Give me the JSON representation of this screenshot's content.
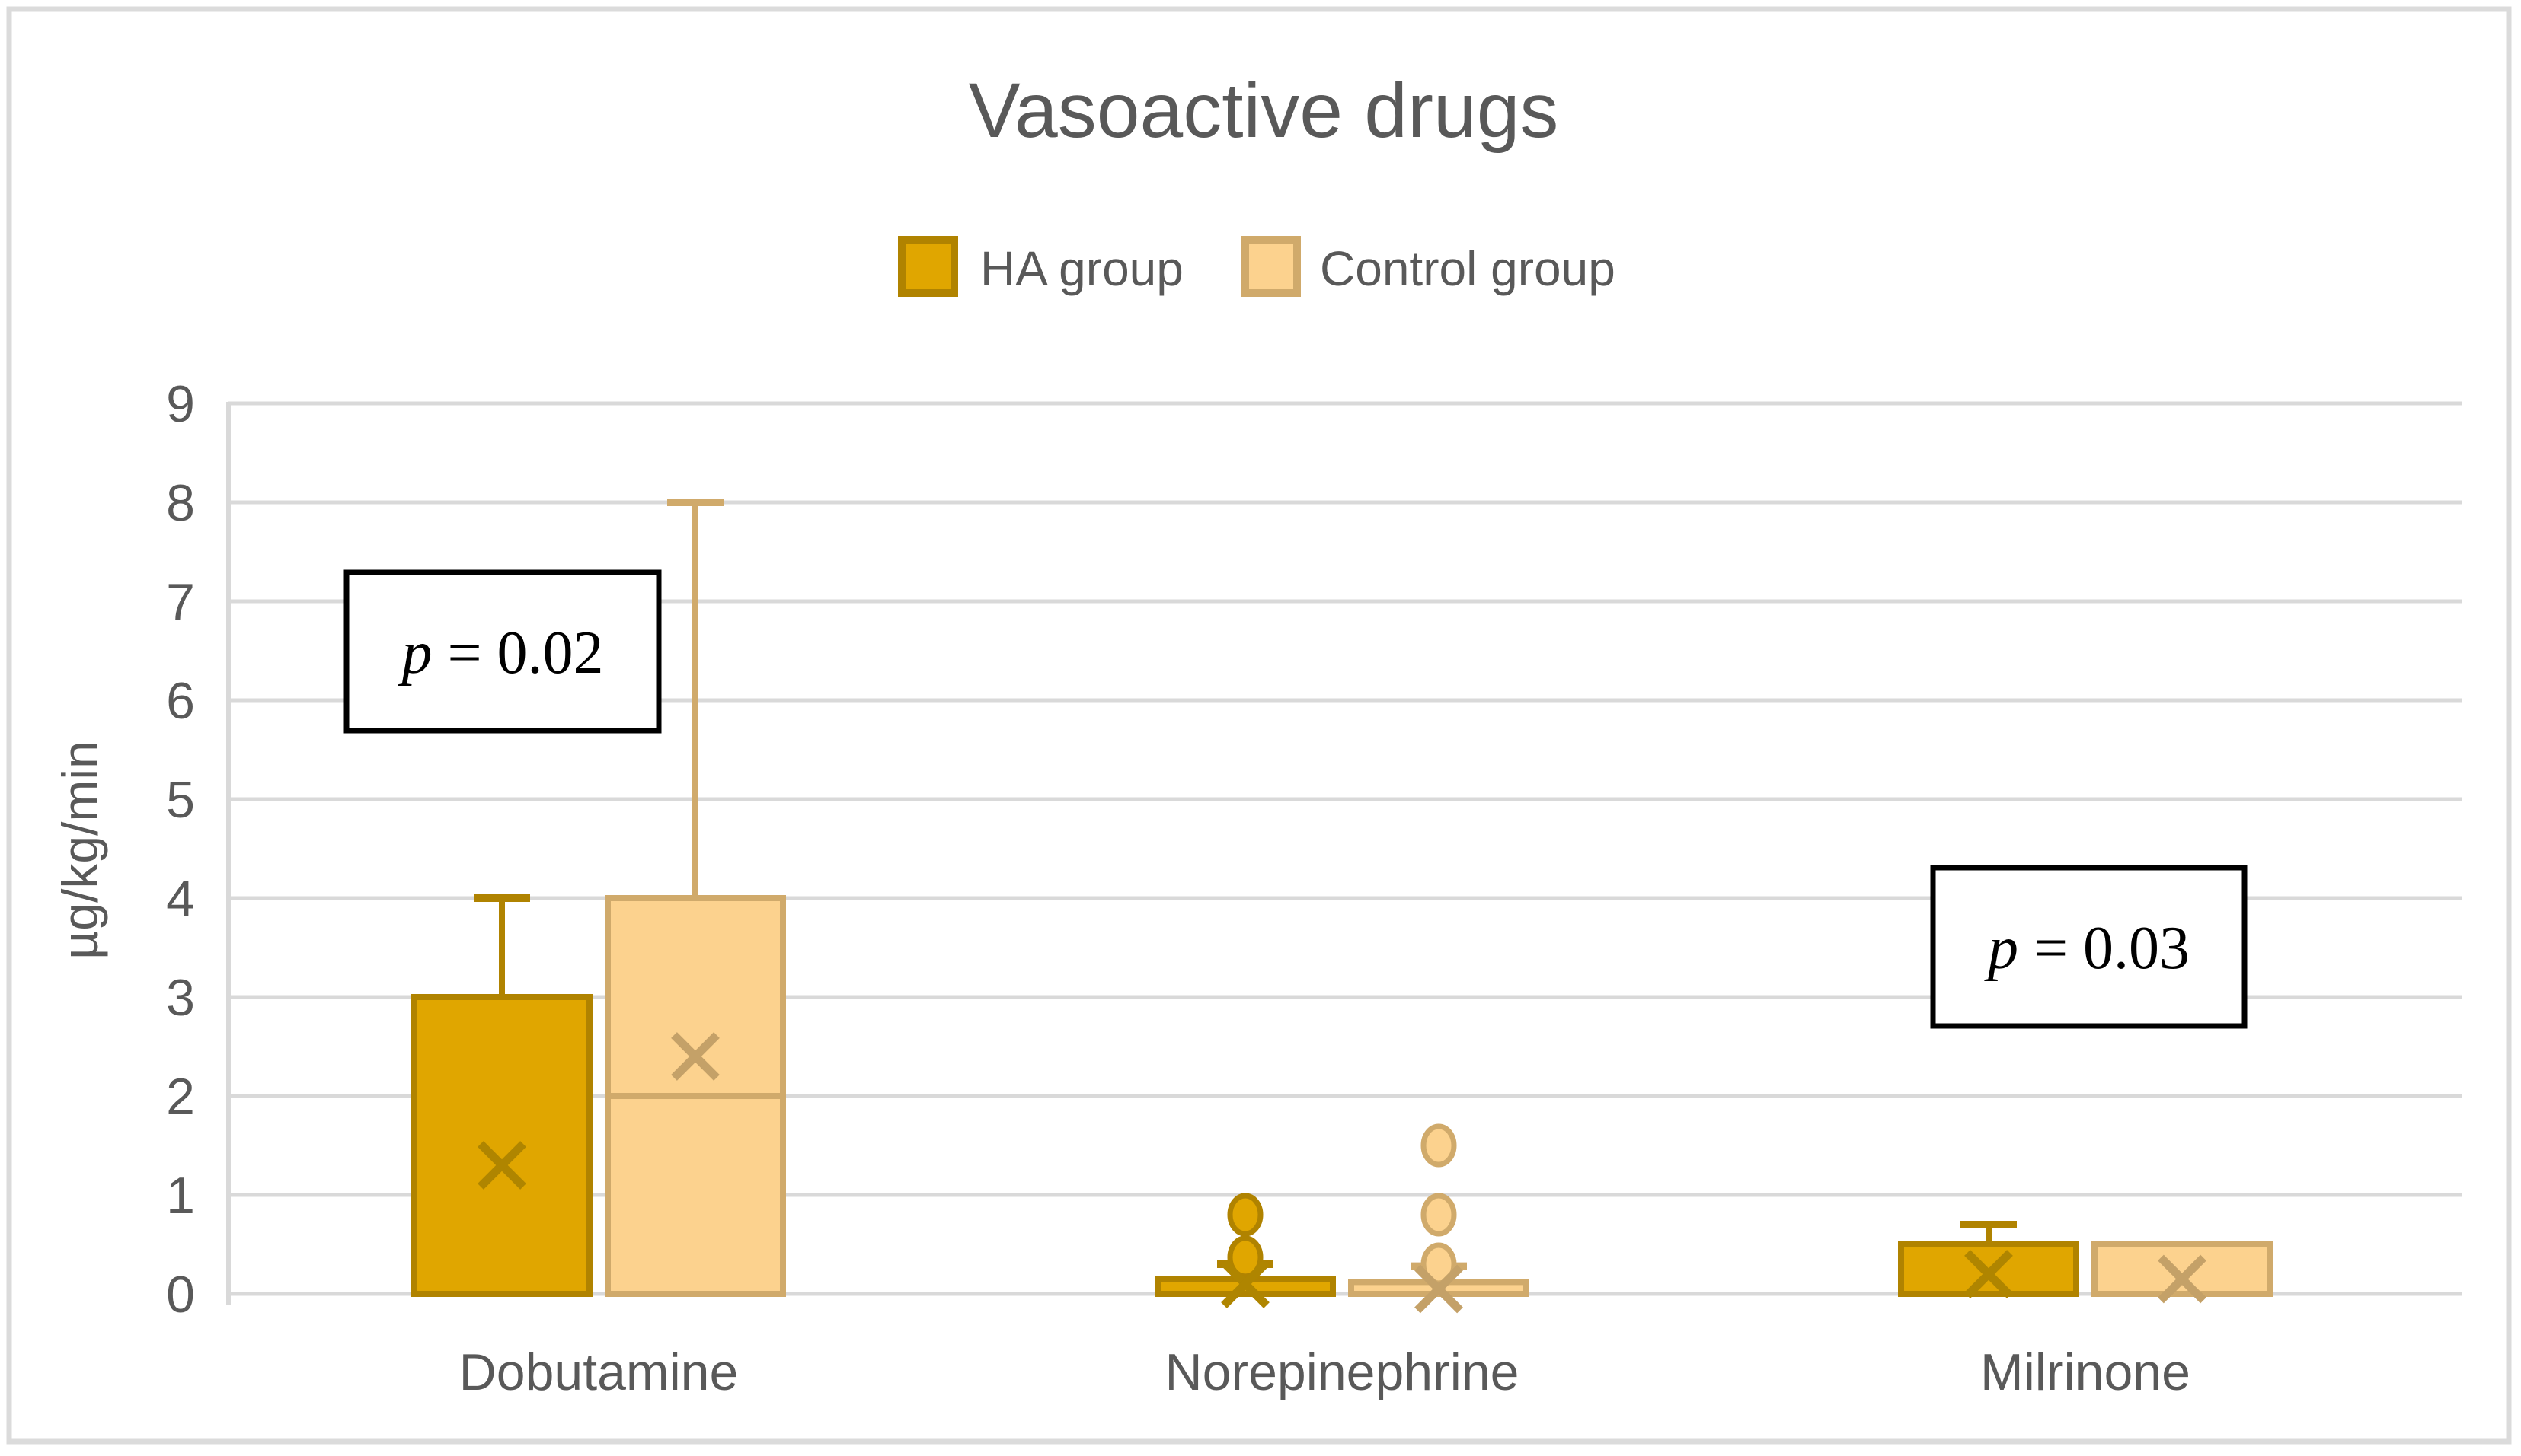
{
  "colors": {
    "text": "#595959",
    "gridline": "#D9D9D9",
    "frame": "#DBDBDB",
    "annotation_border": "#000000",
    "annotation_fill": "#FFFFFF",
    "background": "#FFFFFF"
  },
  "chart_data": {
    "type": "boxplot",
    "title": "Vasoactive drugs",
    "ylabel": "µg/kg/min",
    "ylim": [
      0,
      9
    ],
    "yticks": [
      0,
      1,
      2,
      3,
      4,
      5,
      6,
      7,
      8,
      9
    ],
    "grid": true,
    "legend_position": "top",
    "categories": [
      "Dobutamine",
      "Norepinephrine",
      "Milrinone"
    ],
    "series": [
      {
        "name": "HA group",
        "fill": "#E0A600",
        "border": "#B08300",
        "marker": "#AF8500",
        "boxes": [
          {
            "category": "Dobutamine",
            "q1": 0,
            "q3": 3,
            "median": null,
            "whisker_high": 4,
            "mean": 1.3,
            "outliers": []
          },
          {
            "category": "Norepinephrine",
            "q1": 0,
            "q3": 0.15,
            "median": null,
            "whisker_high": 0.3,
            "mean": 0.1,
            "outliers": [
              0.37,
              0.8
            ]
          },
          {
            "category": "Milrinone",
            "q1": 0,
            "q3": 0.5,
            "median": null,
            "whisker_high": 0.7,
            "mean": 0.2,
            "outliers": []
          }
        ]
      },
      {
        "name": "Control group",
        "fill": "#FCD28E",
        "border": "#D0AA6B",
        "marker": "#C4A168",
        "boxes": [
          {
            "category": "Dobutamine",
            "q1": 0,
            "q3": 4,
            "median": 2,
            "whisker_high": 8,
            "mean": 2.4,
            "outliers": []
          },
          {
            "category": "Norepinephrine",
            "q1": 0,
            "q3": 0.12,
            "median": null,
            "whisker_high": 0.28,
            "mean": 0.05,
            "outliers": [
              0.3,
              0.8,
              1.5
            ]
          },
          {
            "category": "Milrinone",
            "q1": 0,
            "q3": 0.5,
            "median": null,
            "whisker_high": null,
            "mean": 0.15,
            "outliers": []
          }
        ]
      }
    ],
    "annotations": [
      {
        "text": "p = 0.02",
        "italic": "p",
        "rest": " = 0.02",
        "category": "Dobutamine"
      },
      {
        "text": "p = 0.03",
        "italic": "p",
        "rest": " = 0.03",
        "category": "Milrinone"
      }
    ]
  }
}
